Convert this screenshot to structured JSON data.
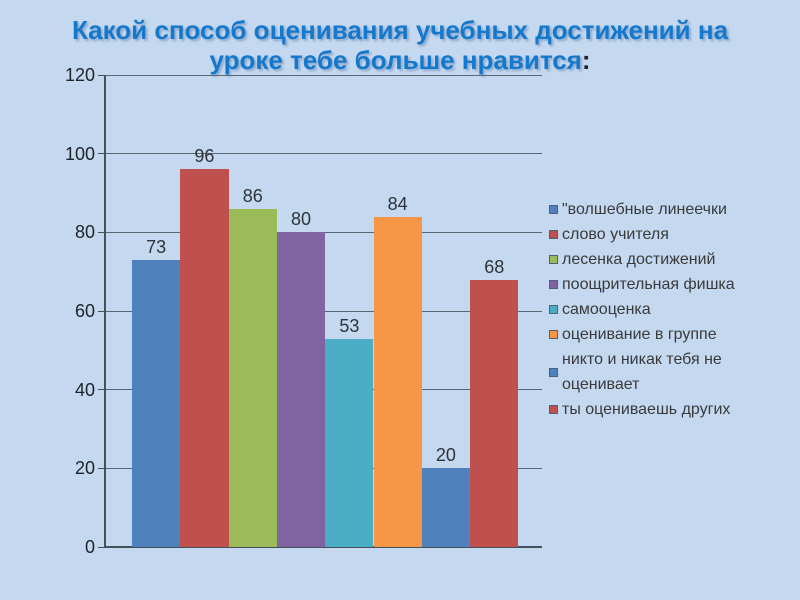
{
  "slide": {
    "title": {
      "line1": "Какой способ оценивания учебных достижений на",
      "line2": "уроке тебе больше нравится",
      "colon": ":"
    }
  },
  "chart_data": {
    "type": "bar",
    "title": "Какой способ оценивания учебных достижений на уроке тебе больше нравится:",
    "categories": [
      "\"волшебные линеечки",
      "слово учителя",
      "лесенка достижений",
      "поощрительная фишка",
      "самооценка",
      "оценивание в группе",
      "никто и никак тебя не оценивает",
      "ты оцениваешь других"
    ],
    "values": [
      73,
      96,
      86,
      80,
      53,
      84,
      20,
      68
    ],
    "bar_colors": [
      "#4f81bd",
      "#c0504d",
      "#9bbb59",
      "#8064a2",
      "#4bacc6",
      "#f79646",
      "#4f81bd",
      "#c0504d"
    ],
    "xlabel": "",
    "ylabel": "",
    "ylim": [
      0,
      120
    ],
    "ytick_step": 20,
    "yticks": [
      0,
      20,
      40,
      60,
      80,
      100,
      120
    ],
    "grid": true,
    "legend_position": "right"
  },
  "colors": {
    "background": "#c4d8f0",
    "title_text": "#1478cc",
    "axis": "#44505a",
    "gridline": "#5a6672",
    "value_label_text": "#2e3338",
    "legend_text": "#3a3a3a"
  }
}
